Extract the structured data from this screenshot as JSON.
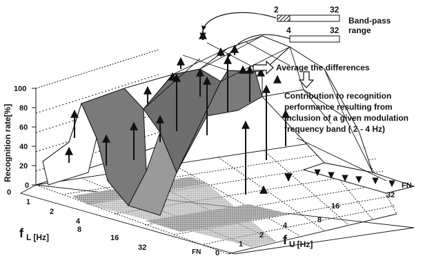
{
  "annotations": {
    "legend_title_line1": "Band-pass",
    "legend_title_line2": "range",
    "legend_bar1_low": "2",
    "legend_bar1_high": "32",
    "legend_bar2_low": "4",
    "legend_bar2_high": "32",
    "average_label": "Average the differences",
    "contribution_lines": [
      "Contribution to recognition",
      "performance resulting from",
      "inclusion of a given modulation",
      "frequency band ( 2 - 4 Hz)"
    ]
  },
  "axes": {
    "z_label": "Recognition rate[%]",
    "z_ticks": [
      "0",
      "20",
      "40",
      "60",
      "80",
      "100"
    ],
    "fl_label_main": "f",
    "fl_label_sub": "L",
    "fl_label_unit": "[Hz]",
    "fl_ticks": [
      "0",
      "1",
      "2",
      "4",
      "8",
      "16",
      "32",
      "FN"
    ],
    "fu_label_main": "f",
    "fu_label_sub": "U",
    "fu_label_unit": "[Hz]",
    "fu_ticks": [
      "0",
      "1",
      "2",
      "4",
      "8",
      "16",
      "32",
      "FN"
    ]
  },
  "colors": {
    "surface_fill": "#7a7a7a",
    "surface_highlight": "#9a9a9a",
    "grid_line": "#111111",
    "floor_shade": "#8c8c8c",
    "text": "#111111"
  }
}
